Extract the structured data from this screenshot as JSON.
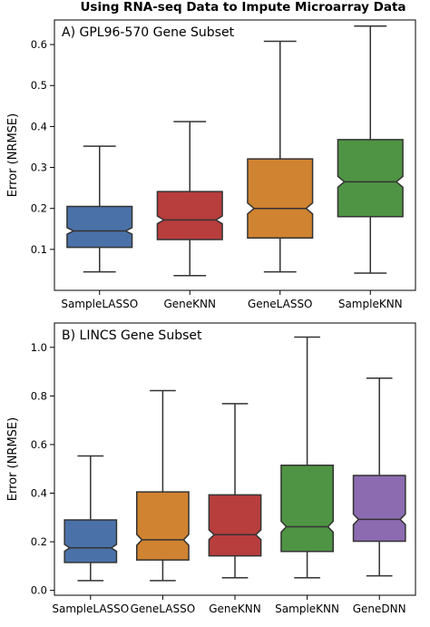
{
  "figure_title": "Using RNA-seq Data to Impute Microarray Data",
  "chart_data": [
    {
      "type": "box",
      "title": "A) GPL96-570 Gene Subset",
      "ylabel": "Error (NRMSE)",
      "ylim": [
        0.0,
        0.66
      ],
      "yticks": [
        "0.1",
        "0.2",
        "0.3",
        "0.4",
        "0.5",
        "0.6"
      ],
      "notched": true,
      "grid": false,
      "categories": [
        "SampleLASSO",
        "GeneKNN",
        "GeneLASSO",
        "SampleKNN"
      ],
      "boxes": [
        {
          "name": "SampleLASSO",
          "whisker_low": 0.045,
          "q1": 0.105,
          "median": 0.145,
          "q3": 0.205,
          "whisker_high": 0.352,
          "color": "#4a72a8"
        },
        {
          "name": "GeneKNN",
          "whisker_low": 0.036,
          "q1": 0.124,
          "median": 0.172,
          "q3": 0.241,
          "whisker_high": 0.412,
          "color": "#b83d3d"
        },
        {
          "name": "GeneLASSO",
          "whisker_low": 0.045,
          "q1": 0.128,
          "median": 0.2,
          "q3": 0.321,
          "whisker_high": 0.608,
          "color": "#d08331"
        },
        {
          "name": "SampleKNN",
          "whisker_low": 0.042,
          "q1": 0.18,
          "median": 0.265,
          "q3": 0.368,
          "whisker_high": 0.645,
          "color": "#4f9444"
        }
      ]
    },
    {
      "type": "box",
      "title": "B) LINCS Gene Subset",
      "ylabel": "Error (NRMSE)",
      "ylim": [
        -0.02,
        1.1
      ],
      "yticks": [
        "0.0",
        "0.2",
        "0.4",
        "0.6",
        "0.8",
        "1.0"
      ],
      "notched": true,
      "grid": false,
      "categories": [
        "SampleLASSO",
        "GeneLASSO",
        "GeneKNN",
        "SampleKNN",
        "GeneDNN"
      ],
      "boxes": [
        {
          "name": "SampleLASSO",
          "whisker_low": 0.04,
          "q1": 0.115,
          "median": 0.175,
          "q3": 0.29,
          "whisker_high": 0.553,
          "color": "#4a72a8"
        },
        {
          "name": "GeneLASSO",
          "whisker_low": 0.04,
          "q1": 0.125,
          "median": 0.208,
          "q3": 0.405,
          "whisker_high": 0.822,
          "color": "#d08331"
        },
        {
          "name": "GeneKNN",
          "whisker_low": 0.052,
          "q1": 0.142,
          "median": 0.229,
          "q3": 0.393,
          "whisker_high": 0.768,
          "color": "#b83d3d"
        },
        {
          "name": "SampleKNN",
          "whisker_low": 0.052,
          "q1": 0.16,
          "median": 0.262,
          "q3": 0.515,
          "whisker_high": 1.042,
          "color": "#4f9444"
        },
        {
          "name": "GeneDNN",
          "whisker_low": 0.06,
          "q1": 0.202,
          "median": 0.292,
          "q3": 0.473,
          "whisker_high": 0.873,
          "color": "#8c6bb1"
        }
      ]
    }
  ]
}
